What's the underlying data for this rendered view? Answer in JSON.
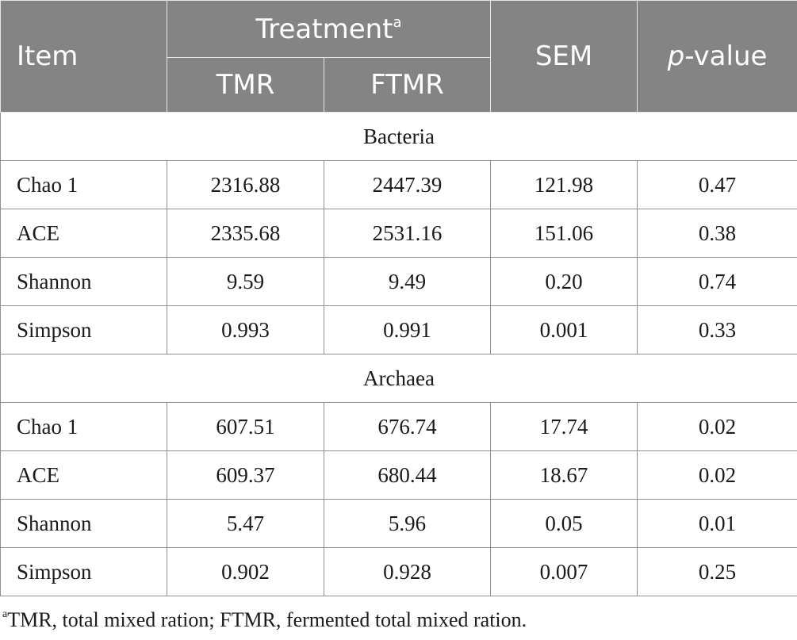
{
  "header": {
    "item": "Item",
    "treatment": "Treatment",
    "treatment_sup": "a",
    "tmr": "TMR",
    "ftmr": "FTMR",
    "sem": "SEM",
    "pvalue_italic": "p",
    "pvalue_rest": "-value"
  },
  "groups": [
    {
      "name": "Bacteria",
      "rows": [
        {
          "item": "Chao 1",
          "tmr": "2316.88",
          "ftmr": "2447.39",
          "sem": "121.98",
          "p": "0.47"
        },
        {
          "item": "ACE",
          "tmr": "2335.68",
          "ftmr": "2531.16",
          "sem": "151.06",
          "p": "0.38"
        },
        {
          "item": "Shannon",
          "tmr": "9.59",
          "ftmr": "9.49",
          "sem": "0.20",
          "p": "0.74"
        },
        {
          "item": "Simpson",
          "tmr": "0.993",
          "ftmr": "0.991",
          "sem": "0.001",
          "p": "0.33"
        }
      ]
    },
    {
      "name": "Archaea",
      "rows": [
        {
          "item": "Chao 1",
          "tmr": "607.51",
          "ftmr": "676.74",
          "sem": "17.74",
          "p": "0.02"
        },
        {
          "item": "ACE",
          "tmr": "609.37",
          "ftmr": "680.44",
          "sem": "18.67",
          "p": "0.02"
        },
        {
          "item": "Shannon",
          "tmr": "5.47",
          "ftmr": "5.96",
          "sem": "0.05",
          "p": "0.01"
        },
        {
          "item": "Simpson",
          "tmr": "0.902",
          "ftmr": "0.928",
          "sem": "0.007",
          "p": "0.25"
        }
      ]
    }
  ],
  "footnote": {
    "marker": "a",
    "text": "TMR, total mixed ration; FTMR, fermented total mixed ration."
  }
}
